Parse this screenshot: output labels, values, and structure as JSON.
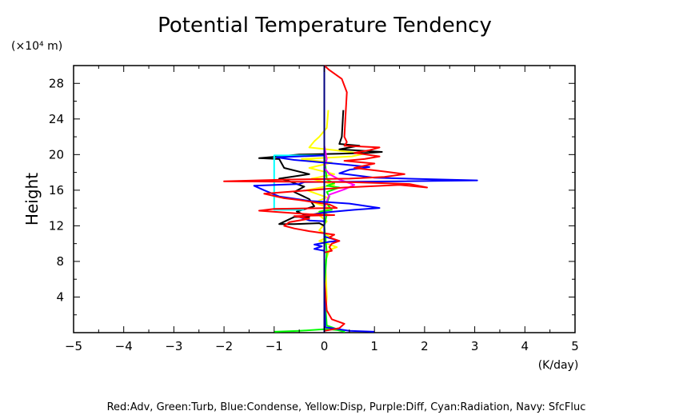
{
  "chart_data": {
    "type": "line",
    "title": "Potential Temperature Tendency",
    "y_unit_label": "(×10⁴ m)",
    "xlabel": "(K/day)",
    "ylabel": "Height",
    "xlim": [
      -5,
      5
    ],
    "ylim": [
      0,
      30
    ],
    "x_ticks": [
      -5,
      -4,
      -3,
      -2,
      -1,
      0,
      1,
      2,
      3,
      4,
      5
    ],
    "y_ticks": [
      4,
      8,
      12,
      16,
      20,
      24,
      28
    ],
    "legend_text": "Red:Adv, Green:Turb, Blue:Condense, Yellow:Disp, Purple:Diff, Cyan:Radiation, Navy: SfcFluc",
    "grid": false,
    "series": [
      {
        "color": "#ffff00",
        "points": [
          [
            0,
            0.2
          ],
          [
            0.05,
            4
          ],
          [
            0.02,
            8
          ],
          [
            0.1,
            9.3
          ],
          [
            0.25,
            9.6
          ],
          [
            -0.1,
            10.3
          ],
          [
            0.1,
            10.8
          ],
          [
            -0.1,
            11.5
          ],
          [
            0.05,
            12.5
          ],
          [
            -0.15,
            13.4
          ],
          [
            0.1,
            14
          ],
          [
            -0.2,
            14.6
          ],
          [
            0.05,
            15.2
          ],
          [
            -0.35,
            16
          ],
          [
            0.2,
            16.6
          ],
          [
            -0.25,
            17.3
          ],
          [
            0.2,
            17.8
          ],
          [
            -0.3,
            18.5
          ],
          [
            0.15,
            19.1
          ],
          [
            -0.45,
            19.5
          ],
          [
            0.55,
            19.8
          ],
          [
            0.8,
            20.1
          ],
          [
            0.2,
            20.5
          ],
          [
            -0.3,
            20.8
          ],
          [
            -0.2,
            21.5
          ],
          [
            -0.1,
            22
          ],
          [
            0.05,
            23
          ],
          [
            0.08,
            25
          ]
        ]
      },
      {
        "color": "#000000",
        "points": [
          [
            0,
            0.2
          ],
          [
            0,
            12
          ],
          [
            -0.1,
            12.3
          ],
          [
            -0.6,
            12.2
          ],
          [
            -0.9,
            12.2
          ],
          [
            -0.6,
            13
          ],
          [
            -0.3,
            13
          ],
          [
            -0.55,
            13.6
          ],
          [
            -0.2,
            14.2
          ],
          [
            -0.3,
            15
          ],
          [
            -0.6,
            15.8
          ],
          [
            -0.4,
            16.4
          ],
          [
            -0.7,
            17
          ],
          [
            -0.9,
            17.3
          ],
          [
            -0.3,
            17.8
          ],
          [
            -0.8,
            18.5
          ],
          [
            -0.9,
            19.5
          ],
          [
            -1.3,
            19.6
          ],
          [
            -0.9,
            19.8
          ],
          [
            -0.5,
            20
          ],
          [
            0.3,
            20.1
          ],
          [
            0.9,
            20.2
          ],
          [
            1.15,
            20.3
          ],
          [
            0.3,
            20.6
          ],
          [
            0.7,
            21
          ],
          [
            0.3,
            21.2
          ],
          [
            0.35,
            22
          ],
          [
            0.38,
            25
          ]
        ]
      },
      {
        "color": "#00ff00",
        "points": [
          [
            -1,
            0.1
          ],
          [
            -0.5,
            0.2
          ],
          [
            0.05,
            0.4
          ],
          [
            0.25,
            0.3
          ],
          [
            0.4,
            0.1
          ],
          [
            0.05,
            0.8
          ],
          [
            0,
            5
          ],
          [
            0.05,
            9
          ],
          [
            0,
            12
          ],
          [
            0.05,
            13.3
          ],
          [
            -0.1,
            13.6
          ],
          [
            0.15,
            13.8
          ],
          [
            0.05,
            14.5
          ],
          [
            0.1,
            15.3
          ],
          [
            0.05,
            15.8
          ],
          [
            0.3,
            16.3
          ],
          [
            0.05,
            16.5
          ],
          [
            0.2,
            16.8
          ],
          [
            0.05,
            17.2
          ],
          [
            0,
            20
          ],
          [
            0,
            25
          ]
        ]
      },
      {
        "color": "#ff00ff",
        "points": [
          [
            0,
            0.2
          ],
          [
            0,
            14
          ],
          [
            0.1,
            15.5
          ],
          [
            0.4,
            16.1
          ],
          [
            0.6,
            16.6
          ],
          [
            0.3,
            17.2
          ],
          [
            0.1,
            17.8
          ],
          [
            0,
            18.5
          ],
          [
            0.05,
            19.5
          ],
          [
            0,
            21
          ]
        ]
      },
      {
        "color": "#00ffff",
        "points": [
          [
            -0.4,
            13.8
          ],
          [
            -1,
            13.8
          ],
          [
            -1,
            19.9
          ],
          [
            -0.6,
            19.9
          ],
          [
            0,
            19.9
          ]
        ]
      },
      {
        "color": "#0000ff",
        "points": [
          [
            1,
            0.1
          ],
          [
            0.5,
            0.2
          ],
          [
            0.02,
            0.6
          ],
          [
            0,
            5
          ],
          [
            0,
            9.2
          ],
          [
            -0.2,
            9.4
          ],
          [
            -0.05,
            9.7
          ],
          [
            -0.2,
            9.9
          ],
          [
            0.1,
            10.2
          ],
          [
            0.3,
            10.3
          ],
          [
            0,
            10.8
          ],
          [
            0,
            12.5
          ],
          [
            -0.3,
            12.6
          ],
          [
            -0.5,
            13
          ],
          [
            -0.2,
            13.3
          ],
          [
            0,
            13.5
          ],
          [
            0.6,
            13.8
          ],
          [
            1.1,
            14
          ],
          [
            0.5,
            14.5
          ],
          [
            -0.3,
            14.8
          ],
          [
            -0.9,
            15.3
          ],
          [
            -1.2,
            16
          ],
          [
            -1.4,
            16.5
          ],
          [
            -0.5,
            16.7
          ],
          [
            -0.4,
            16.9
          ],
          [
            1.5,
            17
          ],
          [
            3.05,
            17.1
          ],
          [
            1,
            17.4
          ],
          [
            0.3,
            17.9
          ],
          [
            0.5,
            18.3
          ],
          [
            0.9,
            18.6
          ],
          [
            0.2,
            19
          ],
          [
            -0.6,
            19.4
          ],
          [
            -0.95,
            19.7
          ],
          [
            0,
            19.9
          ]
        ]
      },
      {
        "color": "#ff0000",
        "points": [
          [
            0,
            0.2
          ],
          [
            0.3,
            0.5
          ],
          [
            0.4,
            1
          ],
          [
            0.15,
            1.5
          ],
          [
            0.05,
            2.5
          ],
          [
            0,
            6
          ],
          [
            0,
            9
          ],
          [
            0.15,
            9.2
          ],
          [
            0.1,
            9.6
          ],
          [
            0.15,
            10
          ],
          [
            0.3,
            10.3
          ],
          [
            0.1,
            10.7
          ],
          [
            0.2,
            11
          ],
          [
            -0.3,
            11.4
          ],
          [
            -0.6,
            11.7
          ],
          [
            -0.8,
            12
          ],
          [
            -0.7,
            12.4
          ],
          [
            -0.3,
            12.8
          ],
          [
            -0.6,
            13.1
          ],
          [
            0.2,
            13.2
          ],
          [
            -0.3,
            13.3
          ],
          [
            -1.3,
            13.7
          ],
          [
            -1,
            13.9
          ],
          [
            0.25,
            14
          ],
          [
            0.1,
            14.4
          ],
          [
            -0.5,
            14.9
          ],
          [
            -0.8,
            15.1
          ],
          [
            -1.2,
            15.6
          ],
          [
            -0.3,
            16
          ],
          [
            0.4,
            16.3
          ],
          [
            1.5,
            16.6
          ],
          [
            2.05,
            16.3
          ],
          [
            1.7,
            16.7
          ],
          [
            0.5,
            16.9
          ],
          [
            -2,
            17
          ],
          [
            -0.7,
            17.2
          ],
          [
            0.5,
            17.3
          ],
          [
            1.2,
            17.5
          ],
          [
            1.6,
            17.8
          ],
          [
            1.2,
            18.1
          ],
          [
            0.6,
            18.5
          ],
          [
            1,
            19
          ],
          [
            0.4,
            19.3
          ],
          [
            0.8,
            19.5
          ],
          [
            1.1,
            19.8
          ],
          [
            0.6,
            20.2
          ],
          [
            0.9,
            20.5
          ],
          [
            1.1,
            20.8
          ],
          [
            0.4,
            21
          ],
          [
            0.45,
            21.4
          ],
          [
            0.4,
            22
          ],
          [
            0.42,
            24
          ],
          [
            0.45,
            27
          ],
          [
            0.35,
            28.5
          ],
          [
            0.1,
            29.5
          ],
          [
            0,
            30
          ]
        ]
      },
      {
        "color": "#000080",
        "points": [
          [
            0,
            0
          ],
          [
            0,
            30
          ]
        ]
      }
    ]
  }
}
